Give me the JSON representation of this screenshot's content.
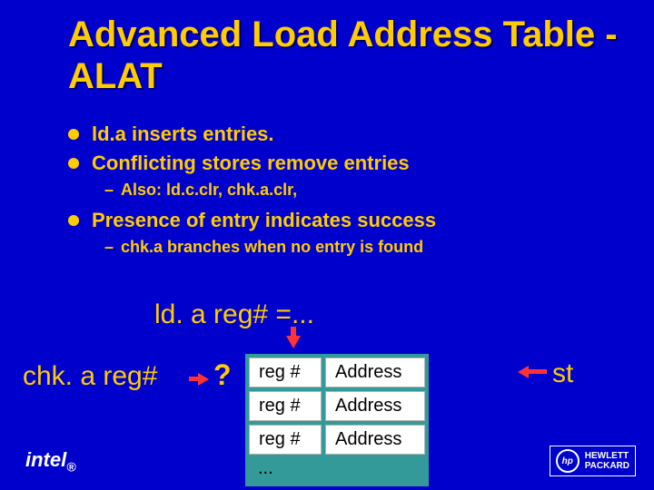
{
  "title": "Advanced Load Address Table - ALAT",
  "bullets": {
    "b1": "ld.a inserts entries.",
    "b2": "Conflicting stores remove entries",
    "b2sub": "Also: ld.c.clr, chk.a.clr,",
    "b3": "Presence of entry indicates success",
    "b3sub": "chk.a branches when no entry is found"
  },
  "diagram": {
    "ldlabel": "ld. a reg# =...",
    "chklabel": "chk. a reg#",
    "stlabel": "st",
    "qmark": "?",
    "dots": "...",
    "rows": [
      {
        "reg": "reg #",
        "addr": "Address"
      },
      {
        "reg": "reg #",
        "addr": "Address"
      },
      {
        "reg": "reg #",
        "addr": "Address"
      }
    ],
    "colors": {
      "bg": "#0000cc",
      "accent": "#ffcc00",
      "tablebg": "#339999",
      "cellbg": "#ffffff",
      "arrow": "#ff3333"
    }
  },
  "logos": {
    "intel": "intel",
    "intel_sub": "®",
    "hp_circle": "hp",
    "hp_line1": "HEWLETT",
    "hp_line2": "PACKARD"
  }
}
